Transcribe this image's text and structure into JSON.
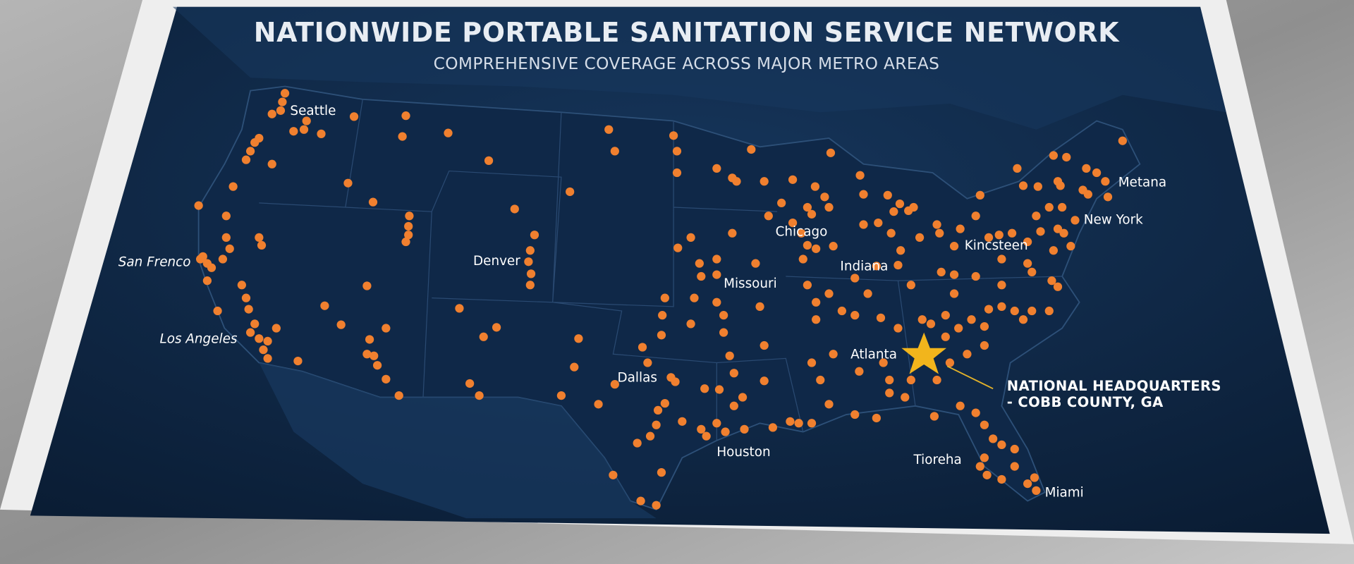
{
  "header": {
    "title": "NATIONWIDE PORTABLE SANITATION SERVICE NETWORK",
    "subtitle": "COMPREHENSIVE COVERAGE ACROSS MAJOR METRO AREAS"
  },
  "cities": [
    {
      "label": "Seattle"
    },
    {
      "label": "San Frenco"
    },
    {
      "label": "Los Angeles"
    },
    {
      "label": "Denver"
    },
    {
      "label": "Chicago"
    },
    {
      "label": "Indiana"
    },
    {
      "label": "Missouri"
    },
    {
      "label": "Dallas"
    },
    {
      "label": "Houston"
    },
    {
      "label": "Atlanta"
    },
    {
      "label": "Kincsteen"
    },
    {
      "label": "New York"
    },
    {
      "label": "Metana"
    },
    {
      "label": "Tioreha"
    },
    {
      "label": "Miami"
    }
  ],
  "headquarters": {
    "lines": [
      "NATIONAL HEADQUARTERS",
      "- COBB COUNTY, GA"
    ]
  }
}
